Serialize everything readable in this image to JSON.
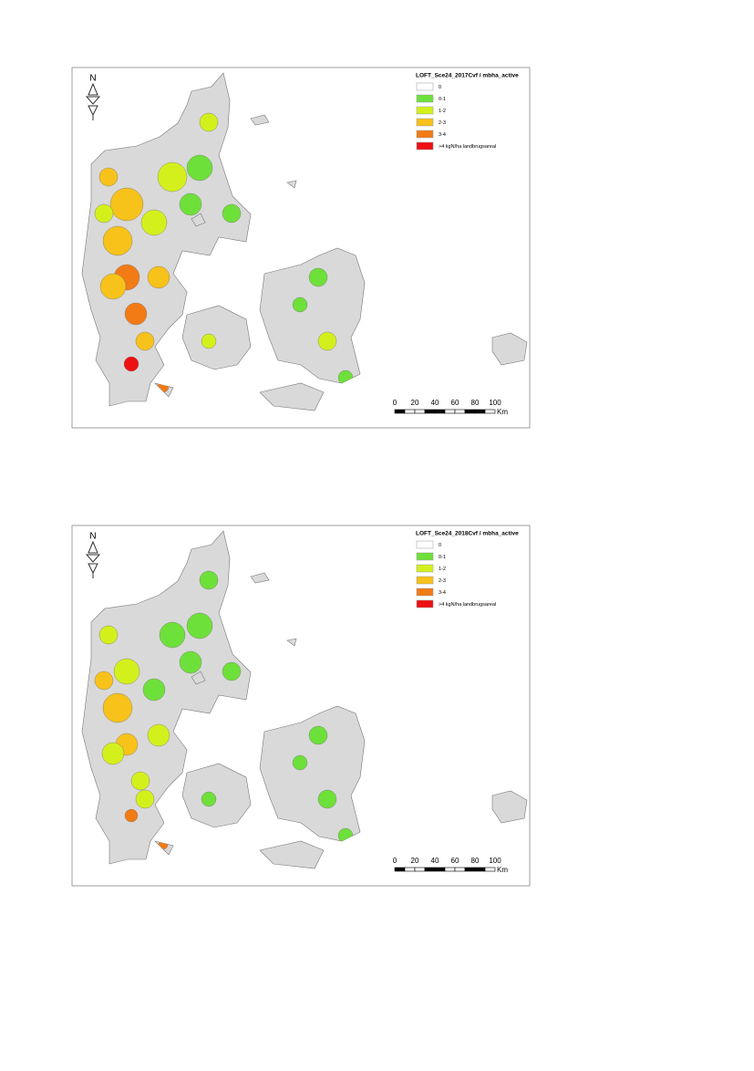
{
  "maps": [
    {
      "north_label": "N",
      "legend": {
        "title": "LOFT_Sce24_2017Cvf / mbha_active",
        "items": [
          {
            "label": "0",
            "color": "#ffffff"
          },
          {
            "label": "0-1",
            "color": "#6ee03a"
          },
          {
            "label": "1-2",
            "color": "#d4f01c"
          },
          {
            "label": "2-3",
            "color": "#f7c21a"
          },
          {
            "label": "3-4",
            "color": "#f27b16"
          },
          {
            "label": ">4 kgN/ha landbrugsareal",
            "color": "#ee1111"
          }
        ]
      },
      "scale_bar": {
        "ticks": [
          0,
          20,
          40,
          60,
          80,
          100
        ],
        "unit": "Km"
      }
    },
    {
      "north_label": "N",
      "legend": {
        "title": "LOFT_Sce24_2018Cvf / mbha_active",
        "items": [
          {
            "label": "0",
            "color": "#ffffff"
          },
          {
            "label": "0-1",
            "color": "#6ee03a"
          },
          {
            "label": "1-2",
            "color": "#d4f01c"
          },
          {
            "label": "2-3",
            "color": "#f7c21a"
          },
          {
            "label": "3-4",
            "color": "#f27b16"
          },
          {
            "label": ">4 kgN/ha landbrugsareal",
            "color": "#ee1111"
          }
        ]
      },
      "scale_bar": {
        "ticks": [
          0,
          20,
          40,
          60,
          80,
          100
        ],
        "unit": "Km"
      }
    }
  ]
}
